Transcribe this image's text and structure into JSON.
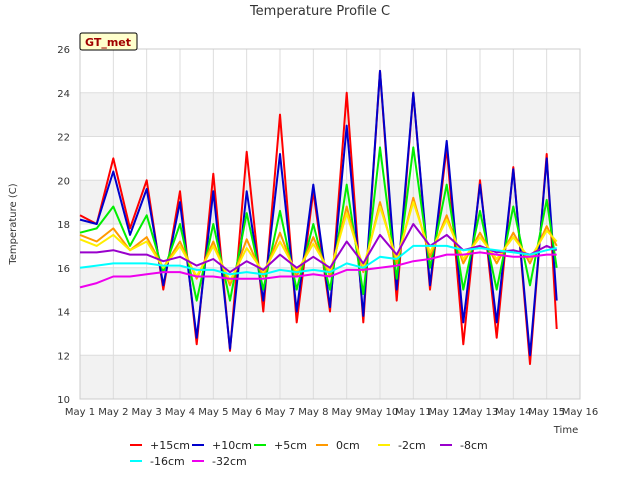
{
  "chart_data": {
    "type": "line",
    "title": "Temperature Profile C",
    "xlabel": "Time",
    "ylabel": "Temperature (C)",
    "badge": "GT_met",
    "xlim": [
      1,
      16
    ],
    "ylim": [
      10,
      26
    ],
    "yticks": [
      10,
      12,
      14,
      16,
      18,
      20,
      22,
      24,
      26
    ],
    "xticks": [
      {
        "day": 1,
        "label": "May 1"
      },
      {
        "day": 2,
        "label": "May 2"
      },
      {
        "day": 3,
        "label": "May 3"
      },
      {
        "day": 4,
        "label": "May 4"
      },
      {
        "day": 5,
        "label": "May 5"
      },
      {
        "day": 6,
        "label": "May 6"
      },
      {
        "day": 7,
        "label": "May 7"
      },
      {
        "day": 8,
        "label": "May 8"
      },
      {
        "day": 9,
        "label": "May 9"
      },
      {
        "day": 10,
        "label": "May 10"
      },
      {
        "day": 11,
        "label": "May 11"
      },
      {
        "day": 12,
        "label": "May 12"
      },
      {
        "day": 13,
        "label": "May 13"
      },
      {
        "day": 14,
        "label": "May 14"
      },
      {
        "day": 15,
        "label": "May 15"
      },
      {
        "day": 16,
        "label": "May 16"
      }
    ],
    "grid": true,
    "legend_position": "bottom",
    "x": [
      1.0,
      1.5,
      2.0,
      2.5,
      3.0,
      3.5,
      4.0,
      4.5,
      5.0,
      5.5,
      6.0,
      6.5,
      7.0,
      7.5,
      8.0,
      8.5,
      9.0,
      9.5,
      10.0,
      10.5,
      11.0,
      11.5,
      12.0,
      12.5,
      13.0,
      13.5,
      14.0,
      14.5,
      15.0,
      15.3
    ],
    "series": [
      {
        "name": "+15cm",
        "color": "#ff0000",
        "values": [
          18.4,
          18.0,
          21.0,
          17.8,
          20.0,
          15.0,
          19.5,
          12.5,
          20.3,
          12.2,
          21.3,
          14.0,
          23.0,
          13.5,
          19.5,
          14.0,
          24.0,
          13.5,
          25.0,
          14.5,
          24.0,
          15.0,
          21.5,
          12.5,
          20.0,
          12.8,
          20.6,
          11.6,
          21.2,
          13.2
        ]
      },
      {
        "name": "+10cm",
        "color": "#0000cc",
        "values": [
          18.2,
          18.0,
          20.4,
          17.5,
          19.6,
          15.2,
          19.0,
          12.8,
          19.5,
          12.3,
          19.5,
          14.5,
          21.2,
          14.0,
          19.8,
          14.2,
          22.5,
          13.8,
          25.0,
          15.0,
          24.0,
          15.2,
          21.8,
          13.5,
          19.8,
          13.5,
          20.5,
          12.0,
          21.0,
          14.5
        ]
      },
      {
        "name": "+5cm",
        "color": "#00ee00",
        "values": [
          17.6,
          17.8,
          18.8,
          17.0,
          18.4,
          15.8,
          18.0,
          14.5,
          18.0,
          14.5,
          18.5,
          15.0,
          18.6,
          15.0,
          18.0,
          15.0,
          19.8,
          14.8,
          21.5,
          15.5,
          21.5,
          16.0,
          19.8,
          15.0,
          18.6,
          15.0,
          18.8,
          15.2,
          19.1,
          16.0
        ]
      },
      {
        "name": "0cm",
        "color": "#ff9900",
        "values": [
          17.5,
          17.2,
          17.8,
          16.8,
          17.4,
          16.0,
          17.2,
          15.5,
          17.2,
          15.2,
          17.3,
          15.6,
          17.6,
          15.6,
          17.4,
          15.6,
          18.8,
          15.8,
          19.0,
          16.2,
          19.2,
          16.5,
          18.4,
          16.2,
          17.6,
          16.2,
          17.6,
          16.2,
          17.9,
          17.0
        ]
      },
      {
        "name": "-2cm",
        "color": "#ffee00",
        "values": [
          17.3,
          17.0,
          17.5,
          16.8,
          17.2,
          16.0,
          17.0,
          15.6,
          17.0,
          15.4,
          16.9,
          15.8,
          17.2,
          15.8,
          17.1,
          15.8,
          18.5,
          16.0,
          18.8,
          16.4,
          19.0,
          16.7,
          18.2,
          16.4,
          17.4,
          16.4,
          17.4,
          16.4,
          17.7,
          17.2
        ]
      },
      {
        "name": "-8cm",
        "color": "#9900cc",
        "values": [
          16.7,
          16.7,
          16.8,
          16.6,
          16.6,
          16.3,
          16.5,
          16.1,
          16.4,
          15.8,
          16.3,
          15.9,
          16.6,
          16.0,
          16.5,
          16.0,
          17.2,
          16.2,
          17.5,
          16.6,
          18.0,
          17.0,
          17.5,
          16.8,
          17.0,
          16.7,
          16.8,
          16.6,
          17.0,
          16.8
        ]
      },
      {
        "name": "-16cm",
        "color": "#00ffff",
        "values": [
          16.0,
          16.1,
          16.2,
          16.2,
          16.2,
          16.1,
          16.1,
          15.9,
          15.9,
          15.7,
          15.8,
          15.7,
          15.9,
          15.8,
          15.9,
          15.8,
          16.2,
          16.0,
          16.5,
          16.4,
          17.0,
          17.0,
          17.0,
          16.8,
          16.9,
          16.8,
          16.7,
          16.6,
          16.8,
          16.9
        ]
      },
      {
        "name": "-32cm",
        "color": "#ee00ee",
        "values": [
          15.1,
          15.3,
          15.6,
          15.6,
          15.7,
          15.8,
          15.8,
          15.6,
          15.6,
          15.5,
          15.5,
          15.5,
          15.6,
          15.6,
          15.7,
          15.6,
          15.9,
          15.9,
          16.0,
          16.1,
          16.3,
          16.4,
          16.6,
          16.6,
          16.7,
          16.6,
          16.5,
          16.5,
          16.6,
          16.6
        ]
      }
    ]
  }
}
